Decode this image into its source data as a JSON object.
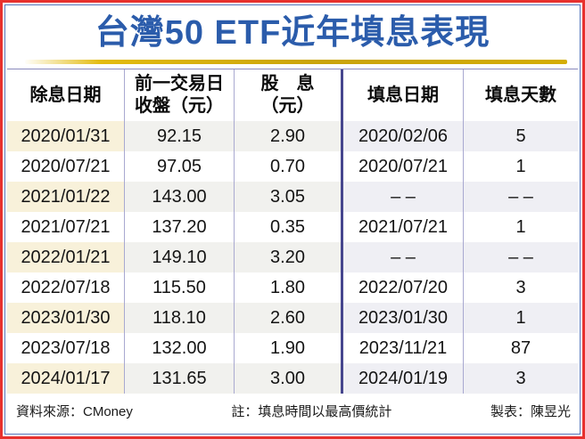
{
  "chart_data": {
    "type": "table",
    "title": "台灣50 ETF近年填息表現",
    "columns": [
      "除息日期",
      "前一交易日\n收盤（元）",
      "股　息\n（元）",
      "填息日期",
      "填息天數"
    ],
    "rows": [
      [
        "2020/01/31",
        "92.15",
        "2.90",
        "2020/02/06",
        "5"
      ],
      [
        "2020/07/21",
        "97.05",
        "0.70",
        "2020/07/21",
        "1"
      ],
      [
        "2021/01/22",
        "143.00",
        "3.05",
        "– –",
        "– –"
      ],
      [
        "2021/07/21",
        "137.20",
        "0.35",
        "2021/07/21",
        "1"
      ],
      [
        "2022/01/21",
        "149.10",
        "3.20",
        "– –",
        "– –"
      ],
      [
        "2022/07/18",
        "115.50",
        "1.80",
        "2022/07/20",
        "3"
      ],
      [
        "2023/01/30",
        "118.10",
        "2.60",
        "2023/01/30",
        "1"
      ],
      [
        "2023/07/18",
        "132.00",
        "1.90",
        "2023/11/21",
        "87"
      ],
      [
        "2024/01/17",
        "131.65",
        "3.00",
        "2024/01/19",
        "3"
      ]
    ],
    "layout_hints": {
      "alternating_row_shading": "odd data rows shaded (first column cream, others light grey)",
      "thick_separator_after_column": "股　息（元）"
    }
  },
  "footer": {
    "source": "資料來源：CMoney",
    "note": "註：填息時間以最高價統計",
    "credit": "製表：陳昱光"
  },
  "colors": {
    "outer_border_red": "#e8312e",
    "inner_border_blue": "#5577bd",
    "title_blue": "#2b5cab",
    "gold_divider": "#c9a30b",
    "thin_column_separator": "#a9a9d0",
    "thick_column_separator": "#46468e",
    "table_top_border": "#8a8abd",
    "alt_row_cream": "#f8f1da",
    "alt_row_grey": "#f1f1ee",
    "alt_row_lavender": "#efeff4"
  }
}
